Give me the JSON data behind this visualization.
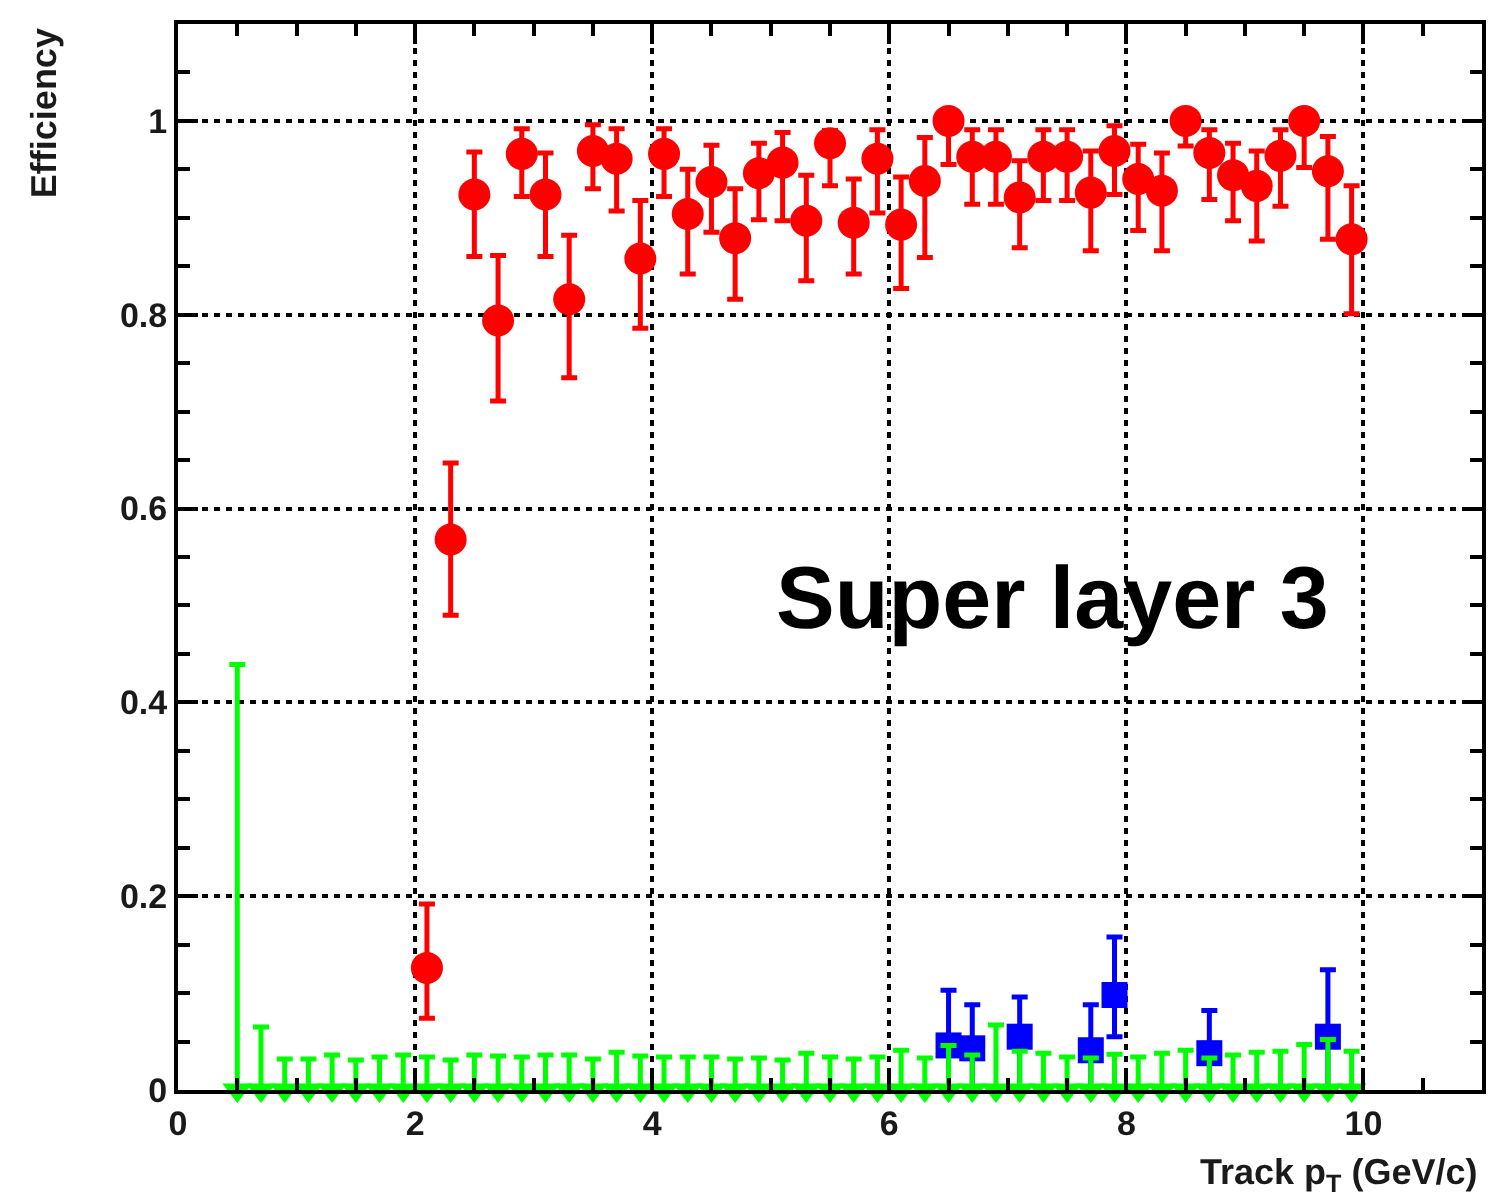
{
  "chart_data": {
    "type": "scatter",
    "xlabel": "Track p$_{T}$ (GeV/c)",
    "ylabel": "Efficiency",
    "annotations": [
      "Super layer 3"
    ],
    "xlim": [
      0,
      11
    ],
    "ylim": [
      0,
      1.1
    ],
    "xticks": [
      0,
      {
        "value": 0.5,
        "label": null
      },
      {
        "value": 1,
        "label": null
      },
      {
        "value": 1.5,
        "label": null
      },
      2,
      {
        "value": 2.5,
        "label": null
      },
      {
        "value": 3,
        "label": null
      },
      {
        "value": 3.5,
        "label": null
      },
      4,
      {
        "value": 4.5,
        "label": null
      },
      {
        "value": 5,
        "label": null
      },
      {
        "value": 5.5,
        "label": null
      },
      6,
      {
        "value": 6.5,
        "label": null
      },
      {
        "value": 7,
        "label": null
      },
      {
        "value": 7.5,
        "label": null
      },
      8,
      {
        "value": 8.5,
        "label": null
      },
      {
        "value": 9,
        "label": null
      },
      {
        "value": 9.5,
        "label": null
      },
      10,
      {
        "value": 10.5,
        "label": null
      }
    ],
    "yticks": [
      0,
      {
        "value": 0.05,
        "label": null
      },
      {
        "value": 0.1,
        "label": null
      },
      {
        "value": 0.15,
        "label": null
      },
      0.2,
      {
        "value": 0.25,
        "label": null
      },
      {
        "value": 0.3,
        "label": null
      },
      {
        "value": 0.35,
        "label": null
      },
      0.4,
      {
        "value": 0.45,
        "label": null
      },
      {
        "value": 0.5,
        "label": null
      },
      {
        "value": 0.55,
        "label": null
      },
      0.6,
      {
        "value": 0.65,
        "label": null
      },
      {
        "value": 0.7,
        "label": null
      },
      {
        "value": 0.75,
        "label": null
      },
      0.8,
      {
        "value": 0.85,
        "label": null
      },
      {
        "value": 0.9,
        "label": null
      },
      {
        "value": 0.95,
        "label": null
      },
      1,
      {
        "value": 1.05,
        "label": null
      }
    ],
    "grid": true,
    "series": [
      {
        "color": "#ff0000",
        "marker": "circle",
        "x": [
          2.1,
          2.3,
          2.5,
          2.7,
          2.9,
          3.1,
          3.3,
          3.5,
          3.7,
          3.9,
          4.1,
          4.3,
          4.5,
          4.7,
          4.9,
          5.1,
          5.3,
          5.5,
          5.7,
          5.9,
          6.1,
          6.3,
          6.5,
          6.7,
          6.9,
          7.1,
          7.3,
          7.5,
          7.7,
          7.9,
          8.1,
          8.3,
          8.5,
          8.7,
          8.9,
          9.1,
          9.3,
          9.5,
          9.7,
          9.9
        ],
        "values": [
          0.126,
          0.568,
          0.924,
          0.794,
          0.966,
          0.924,
          0.816,
          0.969,
          0.961,
          0.858,
          0.966,
          0.904,
          0.937,
          0.879,
          0.946,
          0.957,
          0.897,
          0.977,
          0.895,
          0.961,
          0.893,
          0.938,
          1.0,
          0.963,
          0.963,
          0.921,
          0.963,
          0.963,
          0.926,
          0.969,
          0.94,
          0.928,
          1.0,
          0.967,
          0.944,
          0.933,
          0.964,
          1.0,
          0.948,
          0.878
        ],
        "errors": [
          [
            0.074,
            0.192
          ],
          [
            0.49,
            0.647
          ],
          [
            0.86,
            0.968
          ],
          [
            0.711,
            0.861
          ],
          [
            0.922,
            0.992
          ],
          [
            0.86,
            0.967
          ],
          [
            0.735,
            0.882
          ],
          [
            0.93,
            0.996
          ],
          [
            0.907,
            0.992
          ],
          [
            0.786,
            0.918
          ],
          [
            0.922,
            0.992
          ],
          [
            0.842,
            0.95
          ],
          [
            0.885,
            0.975
          ],
          [
            0.816,
            0.93
          ],
          [
            0.898,
            0.977
          ],
          [
            0.897,
            0.988
          ],
          [
            0.835,
            0.944
          ],
          [
            0.933,
            0.99
          ],
          [
            0.842,
            0.94
          ],
          [
            0.905,
            0.991
          ],
          [
            0.827,
            0.942
          ],
          [
            0.859,
            0.983
          ],
          [
            0.955,
            1.0
          ],
          [
            0.914,
            0.991
          ],
          [
            0.914,
            0.991
          ],
          [
            0.869,
            0.959
          ],
          [
            0.918,
            0.991
          ],
          [
            0.918,
            0.991
          ],
          [
            0.866,
            0.969
          ],
          [
            0.924,
            0.995
          ],
          [
            0.887,
            0.976
          ],
          [
            0.866,
            0.967
          ],
          [
            0.974,
            1.0
          ],
          [
            0.919,
            0.991
          ],
          [
            0.897,
            0.977
          ],
          [
            0.876,
            0.969
          ],
          [
            0.912,
            0.991
          ],
          [
            0.952,
            1.0
          ],
          [
            0.878,
            0.984
          ],
          [
            0.801,
            0.933
          ]
        ]
      },
      {
        "color": "#0000ff",
        "marker": "square",
        "x": [
          6.5,
          6.7,
          7.1,
          7.7,
          7.9,
          8.7,
          9.7
        ],
        "values": [
          0.046,
          0.043,
          0.055,
          0.041,
          0.098,
          0.038,
          0.055
        ],
        "errors": [
          [
            0,
            0.103
          ],
          [
            0,
            0.088
          ],
          [
            0,
            0.096
          ],
          [
            0,
            0.088
          ],
          [
            0.055,
            0.158
          ],
          [
            0,
            0.082
          ],
          [
            0,
            0.124
          ]
        ]
      },
      {
        "color": "#00ff00",
        "marker": "triangle",
        "x": [
          0.5,
          0.7,
          0.9,
          1.1,
          1.3,
          1.5,
          1.7,
          1.9,
          2.1,
          2.3,
          2.5,
          2.7,
          2.9,
          3.1,
          3.3,
          3.5,
          3.7,
          3.9,
          4.1,
          4.3,
          4.5,
          4.7,
          4.9,
          5.1,
          5.3,
          5.5,
          5.7,
          5.9,
          6.1,
          6.3,
          6.5,
          6.7,
          6.9,
          7.1,
          7.3,
          7.5,
          7.7,
          7.9,
          8.1,
          8.3,
          8.5,
          8.7,
          8.9,
          9.1,
          9.3,
          9.5,
          9.7,
          9.9
        ],
        "values": [
          0,
          0,
          0,
          0,
          0,
          0,
          0,
          0,
          0,
          0,
          0,
          0,
          0,
          0,
          0,
          0,
          0,
          0,
          0,
          0,
          0,
          0,
          0,
          0,
          0,
          0,
          0,
          0,
          0,
          0,
          0,
          0,
          0,
          0,
          0,
          0,
          0,
          0,
          0,
          0,
          0,
          0,
          0,
          0,
          0,
          0,
          0,
          0
        ],
        "errors": [
          [
            0,
            0.439
          ],
          [
            0,
            0.065
          ],
          [
            0,
            0.032
          ],
          [
            0,
            0.032
          ],
          [
            0,
            0.036
          ],
          [
            0,
            0.031
          ],
          [
            0,
            0.034
          ],
          [
            0,
            0.036
          ],
          [
            0,
            0.034
          ],
          [
            0,
            0.031
          ],
          [
            0,
            0.036
          ],
          [
            0,
            0.035
          ],
          [
            0,
            0.034
          ],
          [
            0,
            0.036
          ],
          [
            0,
            0.036
          ],
          [
            0,
            0.032
          ],
          [
            0,
            0.039
          ],
          [
            0,
            0.035
          ],
          [
            0,
            0.034
          ],
          [
            0,
            0.034
          ],
          [
            0,
            0.034
          ],
          [
            0,
            0.032
          ],
          [
            0,
            0.033
          ],
          [
            0,
            0.031
          ],
          [
            0,
            0.038
          ],
          [
            0,
            0.034
          ],
          [
            0,
            0.032
          ],
          [
            0,
            0.034
          ],
          [
            0,
            0.041
          ],
          [
            0,
            0.033
          ],
          [
            0,
            0.046
          ],
          [
            0,
            0.036
          ],
          [
            0,
            0.067
          ],
          [
            0,
            0.04
          ],
          [
            0,
            0.038
          ],
          [
            0,
            0.034
          ],
          [
            0,
            0.033
          ],
          [
            0,
            0.037
          ],
          [
            0,
            0.034
          ],
          [
            0,
            0.038
          ],
          [
            0,
            0.041
          ],
          [
            0,
            0.033
          ],
          [
            0,
            0.036
          ],
          [
            0,
            0.039
          ],
          [
            0,
            0.04
          ],
          [
            0,
            0.047
          ],
          [
            0,
            0.052
          ],
          [
            0,
            0.04
          ]
        ]
      }
    ]
  }
}
